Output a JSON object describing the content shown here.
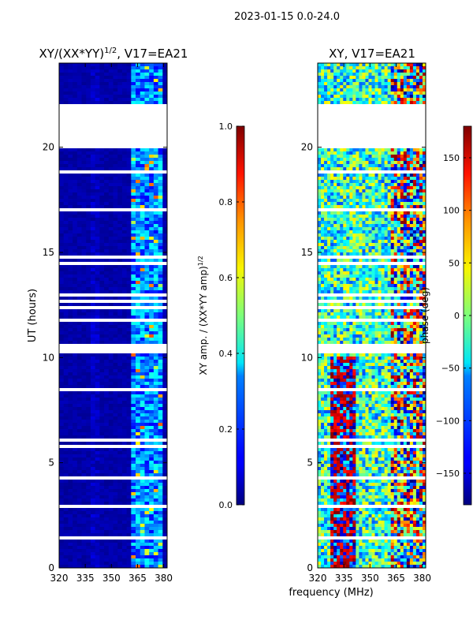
{
  "suptitle": "2023-01-15 0.0-24.0",
  "chart_data": [
    {
      "type": "heatmap",
      "title_main": "XY/(XX*YY)",
      "title_exp": "1/2",
      "title_tail": ", V17=EA21",
      "xlabel": "",
      "ylabel": "UT (hours)",
      "xlim": [
        320,
        382
      ],
      "ylim": [
        0,
        24
      ],
      "xticks": [
        320,
        335,
        350,
        365,
        380
      ],
      "yticks": [
        0,
        5,
        10,
        15,
        20
      ],
      "flagged_ut_ranges": [
        [
          20.0,
          22.0
        ],
        [
          10.3,
          10.7
        ],
        [
          11.7,
          11.9
        ]
      ],
      "bright_band_mhz": [
        362,
        380
      ],
      "colorbar": {
        "label_main": "XY amp. / (XX*YY amp)",
        "label_exp": "1/2",
        "vmin": 0.0,
        "vmax": 1.0,
        "ticks": [
          "0.0",
          "0.2",
          "0.4",
          "0.6",
          "0.8",
          "1.0"
        ]
      }
    },
    {
      "type": "heatmap",
      "title": "XY, V17=EA21",
      "xlabel": "frequency (MHz)",
      "ylabel": "",
      "xlim": [
        320,
        382
      ],
      "ylim": [
        0,
        24
      ],
      "xticks": [
        320,
        335,
        350,
        365,
        380
      ],
      "yticks": [
        0,
        5,
        10,
        15,
        20
      ],
      "flagged_ut_ranges": [
        [
          20.0,
          22.0
        ],
        [
          10.3,
          10.7
        ],
        [
          11.7,
          11.9
        ]
      ],
      "colorbar": {
        "label": "phase (deg)",
        "vmin": -180,
        "vmax": 180,
        "ticks": [
          "−150",
          "−100",
          "−50",
          "0",
          "50",
          "100",
          "150"
        ]
      }
    }
  ]
}
